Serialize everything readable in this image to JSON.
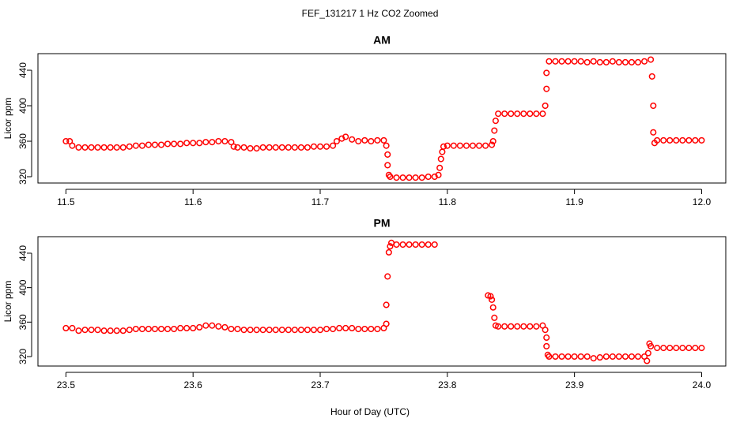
{
  "title": "FEF_131217  1 Hz CO2 Zoomed",
  "xlabel": "Hour of Day (UTC)",
  "chart_data": [
    {
      "type": "scatter",
      "title": "AM",
      "ylabel": "Licor ppm",
      "color": "#ff0000",
      "xlim": [
        11.478,
        12.019
      ],
      "ylim": [
        312.9,
        458.7
      ],
      "xticks": [
        11.5,
        11.6,
        11.7,
        11.8,
        11.9,
        {
          "value": 12,
          "label": "12.0"
        }
      ],
      "yticks": [
        320,
        360,
        400,
        440
      ],
      "x": [
        11.5,
        11.503,
        11.505,
        11.51,
        11.515,
        11.52,
        11.525,
        11.53,
        11.535,
        11.54,
        11.545,
        11.55,
        11.555,
        11.56,
        11.565,
        11.57,
        11.575,
        11.58,
        11.585,
        11.59,
        11.595,
        11.6,
        11.605,
        11.61,
        11.615,
        11.62,
        11.625,
        11.63,
        11.632,
        11.635,
        11.64,
        11.645,
        11.65,
        11.655,
        11.66,
        11.665,
        11.67,
        11.675,
        11.68,
        11.685,
        11.69,
        11.695,
        11.7,
        11.705,
        11.71,
        11.713,
        11.717,
        11.72,
        11.725,
        11.73,
        11.735,
        11.74,
        11.745,
        11.75,
        11.752,
        11.753,
        11.753,
        11.754,
        11.755,
        11.76,
        11.765,
        11.77,
        11.775,
        11.78,
        11.785,
        11.79,
        11.793,
        11.794,
        11.795,
        11.796,
        11.797,
        11.8,
        11.805,
        11.81,
        11.815,
        11.82,
        11.825,
        11.83,
        11.835,
        11.836,
        11.837,
        11.838,
        11.84,
        11.845,
        11.85,
        11.855,
        11.86,
        11.865,
        11.87,
        11.875,
        11.877,
        11.878,
        11.878,
        11.88,
        11.885,
        11.89,
        11.895,
        11.9,
        11.905,
        11.91,
        11.915,
        11.92,
        11.925,
        11.93,
        11.935,
        11.94,
        11.945,
        11.95,
        11.955,
        11.96,
        11.961,
        11.962,
        11.962,
        11.963,
        11.965,
        11.97,
        11.975,
        11.98,
        11.985,
        11.99,
        11.995,
        12.0
      ],
      "values": [
        360,
        360,
        355,
        353,
        353,
        353,
        353,
        353,
        353,
        353,
        353,
        354,
        355,
        355,
        356,
        356,
        356,
        357,
        357,
        357,
        358,
        358,
        358,
        359,
        359,
        360,
        360,
        359,
        354,
        353,
        353,
        352,
        352,
        353,
        353,
        353,
        353,
        353,
        353,
        353,
        353,
        354,
        354,
        354,
        355,
        360,
        363,
        365,
        362,
        360,
        361,
        360,
        361,
        361,
        355,
        345,
        333,
        322,
        320,
        319,
        319,
        319,
        319,
        319,
        320,
        320,
        322,
        330,
        340,
        348,
        354,
        355,
        355,
        355,
        355,
        355,
        355,
        355,
        356,
        360,
        372,
        383,
        391,
        391,
        391,
        391,
        391,
        391,
        391,
        391,
        400,
        419,
        437,
        450,
        450,
        450,
        450,
        450,
        450,
        449,
        450,
        449,
        449,
        450,
        449,
        449,
        449,
        449,
        450,
        452,
        433,
        400,
        370,
        358,
        361,
        361,
        361,
        361,
        361,
        361,
        361,
        361
      ]
    },
    {
      "type": "scatter",
      "title": "PM",
      "ylabel": "Licor ppm",
      "color": "#ff0000",
      "xlim": [
        23.478,
        24.019
      ],
      "ylim": [
        309,
        459.2
      ],
      "xticks": [
        23.5,
        23.6,
        23.7,
        23.8,
        23.9,
        {
          "value": 24,
          "label": "24.0"
        }
      ],
      "yticks": [
        320,
        360,
        400,
        440
      ],
      "x": [
        23.5,
        23.505,
        23.51,
        23.515,
        23.52,
        23.525,
        23.53,
        23.535,
        23.54,
        23.545,
        23.55,
        23.555,
        23.56,
        23.565,
        23.57,
        23.575,
        23.58,
        23.585,
        23.59,
        23.595,
        23.6,
        23.605,
        23.61,
        23.615,
        23.62,
        23.625,
        23.63,
        23.635,
        23.64,
        23.645,
        23.65,
        23.655,
        23.66,
        23.665,
        23.67,
        23.675,
        23.68,
        23.685,
        23.69,
        23.695,
        23.7,
        23.705,
        23.71,
        23.715,
        23.72,
        23.725,
        23.73,
        23.735,
        23.74,
        23.745,
        23.75,
        23.752,
        23.752,
        23.753,
        23.754,
        23.755,
        23.756,
        23.76,
        23.765,
        23.77,
        23.775,
        23.78,
        23.785,
        23.79,
        23.832,
        23.834,
        23.835,
        23.836,
        23.837,
        23.838,
        23.84,
        23.845,
        23.85,
        23.855,
        23.86,
        23.865,
        23.87,
        23.875,
        23.877,
        23.878,
        23.878,
        23.879,
        23.88,
        23.885,
        23.89,
        23.895,
        23.9,
        23.905,
        23.91,
        23.915,
        23.92,
        23.925,
        23.93,
        23.935,
        23.94,
        23.945,
        23.95,
        23.955,
        23.957,
        23.958,
        23.959,
        23.96,
        23.965,
        23.97,
        23.975,
        23.98,
        23.985,
        23.99,
        23.995,
        24.0
      ],
      "values": [
        353,
        353,
        350,
        351,
        351,
        351,
        350,
        350,
        350,
        350,
        351,
        352,
        352,
        352,
        352,
        352,
        352,
        352,
        353,
        353,
        353,
        354,
        356,
        356,
        355,
        354,
        352,
        352,
        351,
        351,
        351,
        351,
        351,
        351,
        351,
        351,
        351,
        351,
        351,
        351,
        351,
        352,
        352,
        353,
        353,
        353,
        352,
        352,
        352,
        352,
        353,
        358,
        380,
        413,
        441,
        448,
        452,
        450,
        450,
        450,
        450,
        450,
        450,
        450,
        391,
        390,
        386,
        377,
        365,
        356,
        355,
        355,
        355,
        355,
        355,
        355,
        355,
        356,
        351,
        342,
        332,
        322,
        320,
        320,
        320,
        320,
        320,
        320,
        320,
        318,
        319,
        320,
        320,
        320,
        320,
        320,
        320,
        320,
        315,
        324,
        335,
        332,
        330,
        330,
        330,
        330,
        330,
        330,
        330,
        330
      ]
    }
  ]
}
